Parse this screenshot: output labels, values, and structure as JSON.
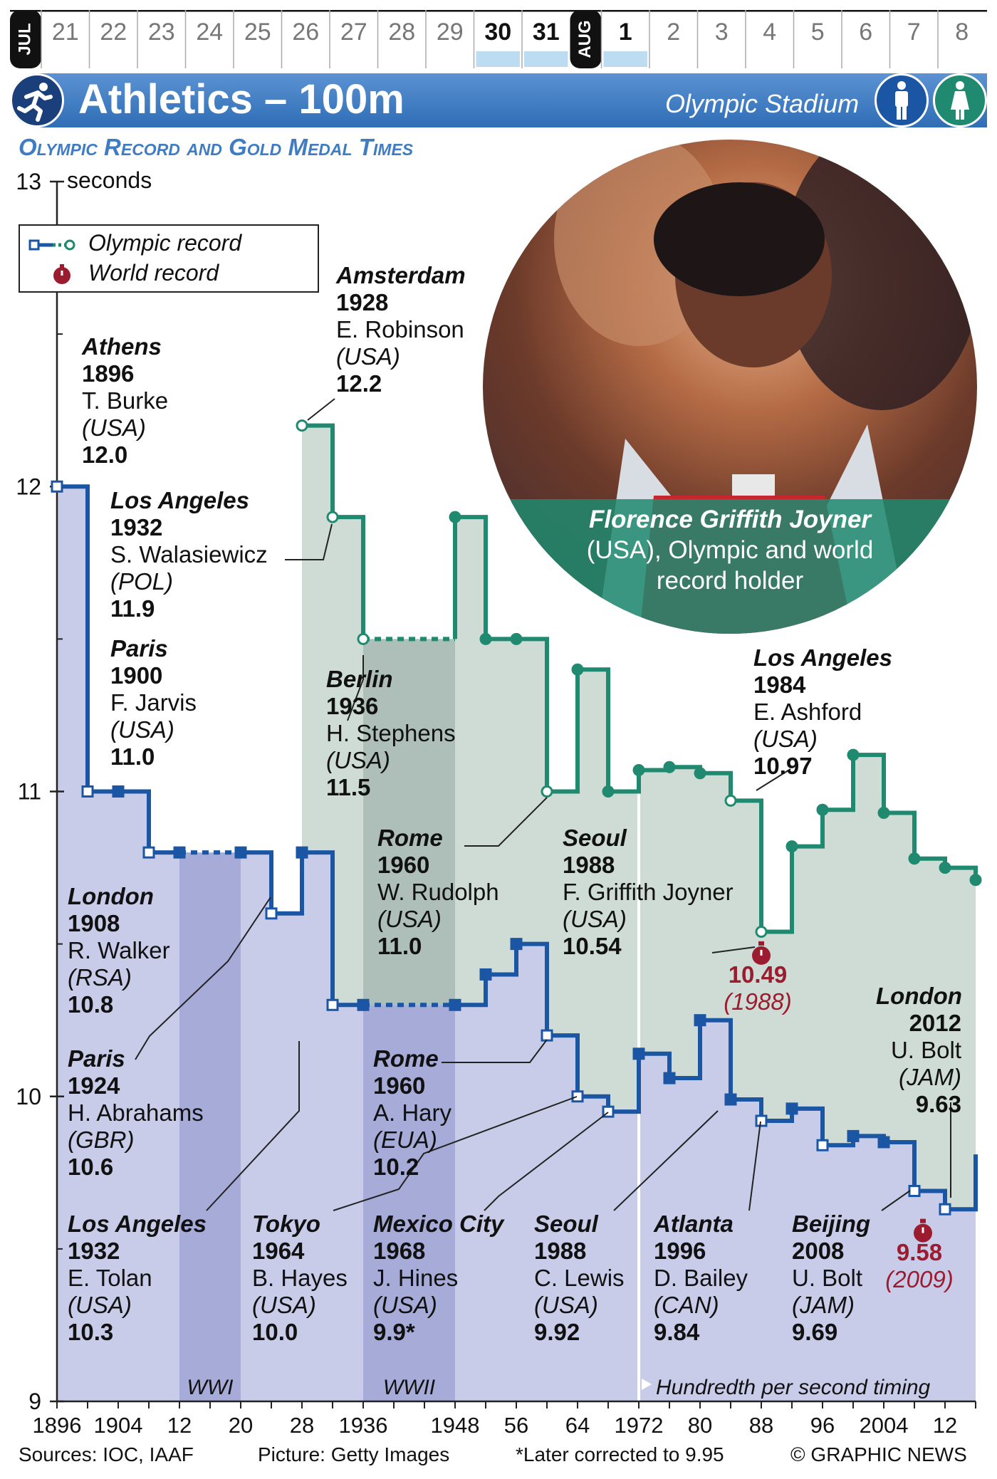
{
  "calendar": {
    "july_label": "JUL",
    "august_label": "AUG",
    "july_days": [
      "21",
      "22",
      "23",
      "24",
      "25",
      "26",
      "27",
      "28",
      "29",
      "30",
      "31"
    ],
    "august_days": [
      "1",
      "2",
      "3",
      "4",
      "5",
      "6",
      "7",
      "8"
    ],
    "highlight_days": [
      "30",
      "31",
      "1"
    ]
  },
  "header": {
    "title": "Athletics – 100m",
    "venue": "Olympic Stadium",
    "sport_icon": "sprinter-icon",
    "men_icon": "man-icon",
    "women_icon": "woman-icon",
    "bar_color": "#3f7cc4",
    "men_color": "#1a56a3",
    "women_color": "#1f8a6f"
  },
  "subtitle": "Olympic Record and Gold Medal Times",
  "legend": {
    "olympic_record": "Olympic record",
    "world_record": "World record"
  },
  "photo": {
    "caption_name": "Florence Griffith Joyner",
    "caption_rest": "(USA), Olympic and world record holder"
  },
  "chart_data": {
    "type": "line",
    "ylabel": "seconds",
    "ylim": [
      9,
      13
    ],
    "yticks": [
      "9",
      "10",
      "11",
      "12",
      "13"
    ],
    "xlim": [
      1896,
      2016
    ],
    "xtick_labels": [
      "1896",
      "1904",
      "12",
      "20",
      "28",
      "1936",
      "1948",
      "56",
      "64",
      "1972",
      "80",
      "88",
      "96",
      "2004",
      "12"
    ],
    "series": [
      {
        "name": "Men",
        "color": "#1a56a3",
        "x": [
          1896,
          1900,
          1904,
          1908,
          1912,
          1920,
          1924,
          1928,
          1932,
          1936,
          1948,
          1952,
          1956,
          1960,
          1964,
          1968,
          1972,
          1976,
          1980,
          1984,
          1988,
          1992,
          1996,
          2000,
          2004,
          2008,
          2012,
          2016
        ],
        "y": [
          12.0,
          11.0,
          11.0,
          10.8,
          10.8,
          10.8,
          10.6,
          10.8,
          10.3,
          10.3,
          10.3,
          10.4,
          10.5,
          10.2,
          10.0,
          9.95,
          10.14,
          10.06,
          10.25,
          9.99,
          9.92,
          9.96,
          9.84,
          9.87,
          9.85,
          9.69,
          9.63,
          9.81
        ],
        "record_years": [
          1896,
          1900,
          1908,
          1924,
          1932,
          1960,
          1964,
          1968,
          1988,
          1996,
          2008,
          2012
        ]
      },
      {
        "name": "Women",
        "color": "#1f8a6f",
        "x": [
          1928,
          1932,
          1936,
          1948,
          1952,
          1956,
          1960,
          1964,
          1968,
          1972,
          1976,
          1980,
          1984,
          1988,
          1992,
          1996,
          2000,
          2004,
          2008,
          2012,
          2016
        ],
        "y": [
          12.2,
          11.9,
          11.5,
          11.9,
          11.5,
          11.5,
          11.0,
          11.4,
          11.0,
          11.07,
          11.08,
          11.06,
          10.97,
          10.54,
          10.82,
          10.94,
          11.12,
          10.93,
          10.78,
          10.75,
          10.71
        ],
        "record_years": [
          1928,
          1932,
          1936,
          1960,
          1984,
          1988
        ]
      }
    ],
    "war_gaps": [
      {
        "label": "WWI",
        "from": 1912,
        "to": 1920
      },
      {
        "label": "WWII",
        "from": 1936,
        "to": 1948
      }
    ],
    "timing_note": {
      "year": 1972,
      "label": "Hundredth per second timing"
    },
    "world_records": [
      {
        "x": 1988,
        "value": "10.49",
        "year": "(1988)",
        "y": 10.49
      },
      {
        "x": 2008,
        "value": "9.58",
        "year": "(2009)",
        "y": 9.58
      }
    ],
    "annotations": [
      {
        "city": "Athens",
        "year": "1896",
        "name": "T. Burke",
        "nat": "(USA)",
        "time": "12.0"
      },
      {
        "city": "Amsterdam",
        "year": "1928",
        "name": "E. Robinson",
        "nat": "(USA)",
        "time": "12.2"
      },
      {
        "city": "Los Angeles",
        "year": "1932",
        "name": "S. Walasiewicz",
        "nat": "(POL)",
        "time": "11.9"
      },
      {
        "city": "Paris",
        "year": "1900",
        "name": "F. Jarvis",
        "nat": "(USA)",
        "time": "11.0"
      },
      {
        "city": "Berlin",
        "year": "1936",
        "name": "H. Stephens",
        "nat": "(USA)",
        "time": "11.5"
      },
      {
        "city": "Los Angeles",
        "year": "1984",
        "name": "E. Ashford",
        "nat": "(USA)",
        "time": "10.97"
      },
      {
        "city": "Rome",
        "year": "1960",
        "name": "W. Rudolph",
        "nat": "(USA)",
        "time": "11.0"
      },
      {
        "city": "Seoul",
        "year": "1988",
        "name": "F. Griffith Joyner",
        "nat": "(USA)",
        "time": "10.54"
      },
      {
        "city": "London",
        "year": "1908",
        "name": "R. Walker",
        "nat": "(RSA)",
        "time": "10.8"
      },
      {
        "city": "Paris",
        "year": "1924",
        "name": "H. Abrahams",
        "nat": "(GBR)",
        "time": "10.6"
      },
      {
        "city": "Rome",
        "year": "1960",
        "name": "A. Hary",
        "nat": "(EUA)",
        "time": "10.2"
      },
      {
        "city": "London",
        "year": "2012",
        "name": "U. Bolt",
        "nat": "(JAM)",
        "time": "9.63"
      },
      {
        "city": "Los Angeles",
        "year": "1932",
        "name": "E. Tolan",
        "nat": "(USA)",
        "time": "10.3"
      },
      {
        "city": "Tokyo",
        "year": "1964",
        "name": "B. Hayes",
        "nat": "(USA)",
        "time": "10.0"
      },
      {
        "city": "Mexico City",
        "year": "1968",
        "name": "J. Hines",
        "nat": "(USA)",
        "time": "9.9*"
      },
      {
        "city": "Seoul",
        "year": "1988",
        "name": "C. Lewis",
        "nat": "(USA)",
        "time": "9.92"
      },
      {
        "city": "Atlanta",
        "year": "1996",
        "name": "D. Bailey",
        "nat": "(CAN)",
        "time": "9.84"
      },
      {
        "city": "Beijing",
        "year": "2008",
        "name": "U. Bolt",
        "nat": "(JAM)",
        "time": "9.69"
      }
    ]
  },
  "footer": {
    "sources": "Sources: IOC, IAAF",
    "picture": "Picture: Getty Images",
    "note": "*Later corrected to 9.95",
    "credit": "© GRAPHIC NEWS"
  }
}
